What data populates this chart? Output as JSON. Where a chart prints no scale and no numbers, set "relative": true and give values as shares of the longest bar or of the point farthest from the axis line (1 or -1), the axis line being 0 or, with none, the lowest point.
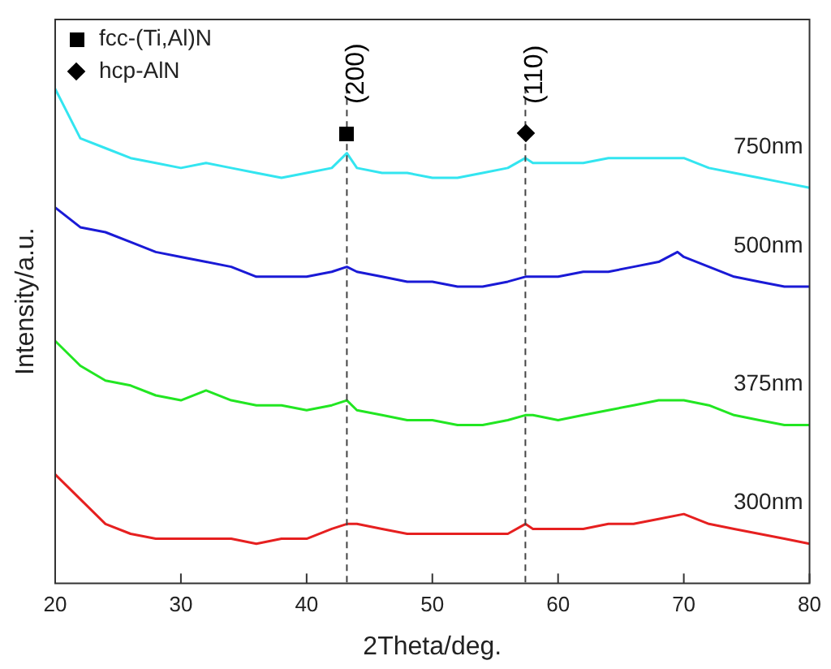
{
  "chart_data": {
    "type": "line",
    "relative": true,
    "xlabel": "2Theta/deg.",
    "ylabel": "Intensity/a.u.",
    "x": [
      20,
      22,
      24,
      26,
      28,
      30,
      32,
      34,
      36,
      38,
      40,
      42,
      43.2,
      44,
      46,
      48,
      50,
      52,
      54,
      56,
      57.4,
      58,
      60,
      62,
      64,
      66,
      68,
      70,
      72,
      74,
      76,
      78,
      80
    ],
    "xlim": [
      20,
      80
    ],
    "xticks": [
      20,
      30,
      40,
      50,
      60,
      70,
      80
    ],
    "series": [
      {
        "name": "750nm",
        "color": "#33e5f0",
        "values": [
          1.0,
          0.9,
          0.88,
          0.86,
          0.85,
          0.84,
          0.85,
          0.84,
          0.83,
          0.82,
          0.83,
          0.84,
          0.87,
          0.84,
          0.83,
          0.83,
          0.82,
          0.82,
          0.83,
          0.84,
          0.86,
          0.85,
          0.85,
          0.85,
          0.86,
          0.86,
          0.86,
          0.86,
          0.84,
          0.83,
          0.82,
          0.81,
          0.8
        ]
      },
      {
        "name": "500nm",
        "color": "#1a1ad6",
        "x": [
          20,
          22,
          24,
          26,
          28,
          30,
          32,
          34,
          36,
          38,
          40,
          42,
          43.2,
          44,
          46,
          48,
          50,
          52,
          54,
          56,
          57.4,
          58,
          60,
          62,
          64,
          66,
          68,
          69.5,
          70,
          72,
          74,
          76,
          78,
          80
        ],
        "values": [
          0.76,
          0.72,
          0.71,
          0.69,
          0.67,
          0.66,
          0.65,
          0.64,
          0.62,
          0.62,
          0.62,
          0.63,
          0.64,
          0.63,
          0.62,
          0.61,
          0.61,
          0.6,
          0.6,
          0.61,
          0.62,
          0.62,
          0.62,
          0.63,
          0.63,
          0.64,
          0.65,
          0.67,
          0.66,
          0.64,
          0.62,
          0.61,
          0.6,
          0.6
        ]
      },
      {
        "name": "375nm",
        "color": "#22e622",
        "values": [
          0.49,
          0.44,
          0.41,
          0.4,
          0.38,
          0.37,
          0.39,
          0.37,
          0.36,
          0.36,
          0.35,
          0.36,
          0.37,
          0.35,
          0.34,
          0.33,
          0.33,
          0.32,
          0.32,
          0.33,
          0.34,
          0.34,
          0.33,
          0.34,
          0.35,
          0.36,
          0.37,
          0.37,
          0.36,
          0.34,
          0.33,
          0.32,
          0.32
        ]
      },
      {
        "name": "300nm",
        "color": "#e62020",
        "values": [
          0.22,
          0.17,
          0.12,
          0.1,
          0.09,
          0.09,
          0.09,
          0.09,
          0.08,
          0.09,
          0.09,
          0.11,
          0.12,
          0.12,
          0.11,
          0.1,
          0.1,
          0.1,
          0.1,
          0.1,
          0.12,
          0.11,
          0.11,
          0.11,
          0.12,
          0.12,
          0.13,
          0.14,
          0.12,
          0.11,
          0.1,
          0.09,
          0.08
        ]
      }
    ],
    "ref_lines": [
      {
        "axis": "x",
        "value": 43.2,
        "color": "#444444",
        "line_style": "dashed"
      },
      {
        "axis": "x",
        "value": 57.4,
        "color": "#444444",
        "line_style": "dashed"
      }
    ],
    "annotations": [
      "fcc-(Ti,Al)N",
      "hcp-AlN",
      "(200)",
      "(110)"
    ],
    "grid": false,
    "legend": false,
    "marker": "none",
    "line_style": "solid"
  }
}
